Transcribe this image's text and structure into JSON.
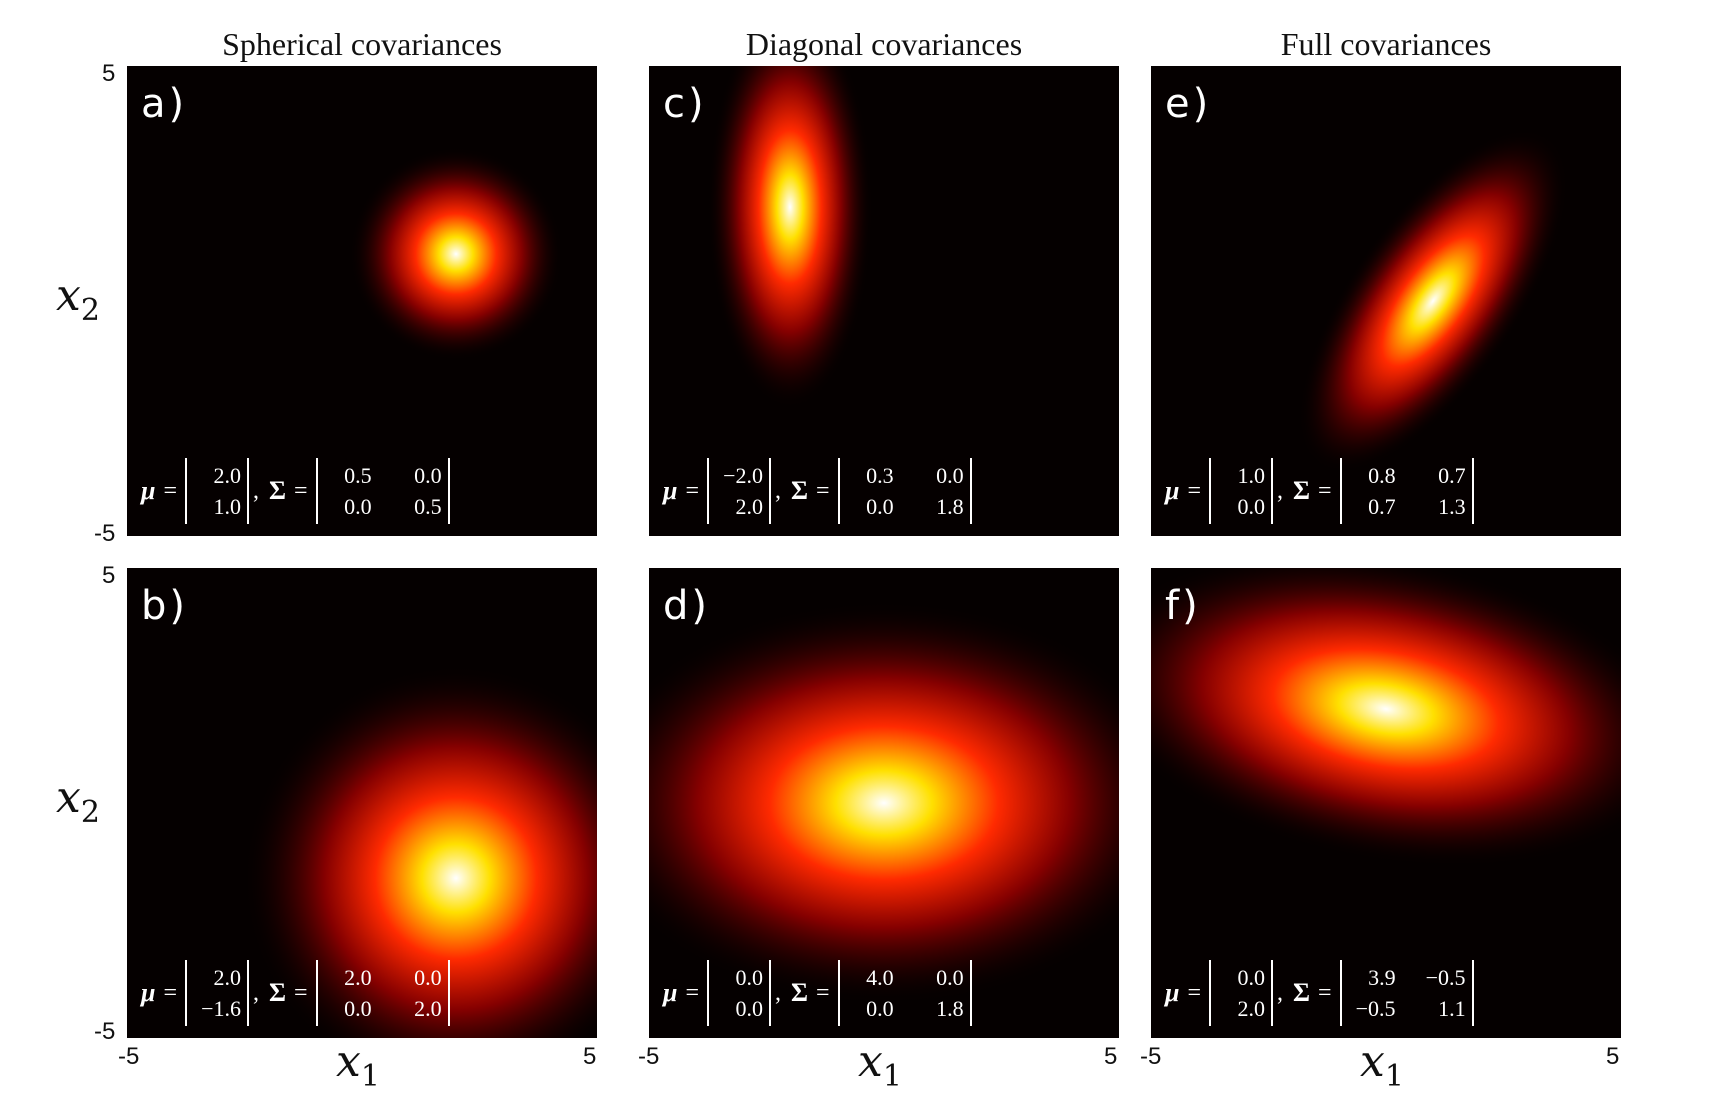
{
  "titles": [
    "Spherical covariances",
    "Diagonal covariances",
    "Full covariances"
  ],
  "axes": {
    "xlabel": "x",
    "xlabel_sub": "1",
    "ylabel": "x",
    "ylabel_sub": "2",
    "tick_min": "-5",
    "tick_max": "5"
  },
  "symbols": {
    "mu": "μ",
    "sigma": "Σ",
    "eq": "=",
    "comma": ","
  },
  "colors": {
    "background": "#050000",
    "low": "#8b0000",
    "mid": "#ff2a00",
    "high": "#ffe000",
    "peak": "#ffffff"
  },
  "chart_data": [
    {
      "type": "heatmap",
      "label": "a)",
      "mean": [
        2.0,
        1.0
      ],
      "cov": [
        [
          0.5,
          0.0
        ],
        [
          0.0,
          0.5
        ]
      ],
      "mean_text": [
        "2.0",
        "1.0"
      ],
      "cov_text": [
        [
          "0.5",
          "0.0"
        ],
        [
          "0.0",
          "0.5"
        ]
      ],
      "xlim": [
        -5,
        5
      ],
      "ylim": [
        -5,
        5
      ]
    },
    {
      "type": "heatmap",
      "label": "b)",
      "mean": [
        2.0,
        -1.6
      ],
      "cov": [
        [
          2.0,
          0.0
        ],
        [
          0.0,
          2.0
        ]
      ],
      "mean_text": [
        "2.0",
        "−1.6"
      ],
      "cov_text": [
        [
          "2.0",
          "0.0"
        ],
        [
          "0.0",
          "2.0"
        ]
      ],
      "xlim": [
        -5,
        5
      ],
      "ylim": [
        -5,
        5
      ]
    },
    {
      "type": "heatmap",
      "label": "c)",
      "mean": [
        -2.0,
        2.0
      ],
      "cov": [
        [
          0.3,
          0.0
        ],
        [
          0.0,
          1.8
        ]
      ],
      "mean_text": [
        "−2.0",
        "2.0"
      ],
      "cov_text": [
        [
          "0.3",
          "0.0"
        ],
        [
          "0.0",
          "1.8"
        ]
      ],
      "xlim": [
        -5,
        5
      ],
      "ylim": [
        -5,
        5
      ]
    },
    {
      "type": "heatmap",
      "label": "d)",
      "mean": [
        0.0,
        0.0
      ],
      "cov": [
        [
          4.0,
          0.0
        ],
        [
          0.0,
          1.8
        ]
      ],
      "mean_text": [
        "0.0",
        "0.0"
      ],
      "cov_text": [
        [
          "4.0",
          "0.0"
        ],
        [
          "0.0",
          "1.8"
        ]
      ],
      "xlim": [
        -5,
        5
      ],
      "ylim": [
        -5,
        5
      ]
    },
    {
      "type": "heatmap",
      "label": "e)",
      "mean": [
        1.0,
        0.0
      ],
      "cov": [
        [
          0.8,
          0.7
        ],
        [
          0.7,
          1.3
        ]
      ],
      "mean_text": [
        "1.0",
        "0.0"
      ],
      "cov_text": [
        [
          "0.8",
          "0.7"
        ],
        [
          "0.7",
          "1.3"
        ]
      ],
      "xlim": [
        -5,
        5
      ],
      "ylim": [
        -5,
        5
      ]
    },
    {
      "type": "heatmap",
      "label": "f)",
      "mean": [
        0.0,
        2.0
      ],
      "cov": [
        [
          3.9,
          -0.5
        ],
        [
          -0.5,
          1.1
        ]
      ],
      "mean_text": [
        "0.0",
        "2.0"
      ],
      "cov_text": [
        [
          "3.9",
          "−0.5"
        ],
        [
          "−0.5",
          "1.1"
        ]
      ],
      "xlim": [
        -5,
        5
      ],
      "ylim": [
        -5,
        5
      ]
    }
  ]
}
